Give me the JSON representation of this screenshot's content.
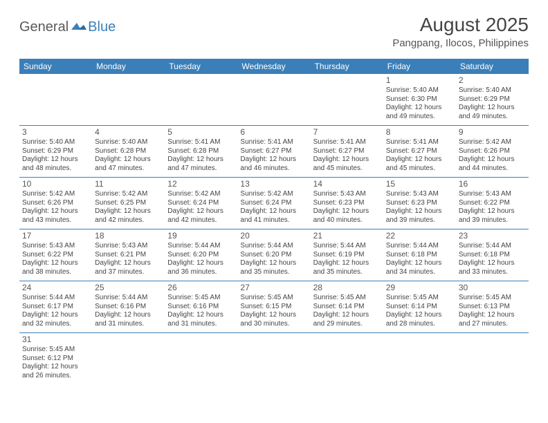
{
  "logo": {
    "part1": "General",
    "part2": "Blue"
  },
  "title": "August 2025",
  "location": "Pangpang, Ilocos, Philippines",
  "colors": {
    "header_bg": "#3b7fb8",
    "header_text": "#ffffff",
    "border": "#3b7fb8",
    "text": "#444444",
    "logo_gray": "#5a5a5a",
    "logo_blue": "#3b7fb8"
  },
  "weekdays": [
    "Sunday",
    "Monday",
    "Tuesday",
    "Wednesday",
    "Thursday",
    "Friday",
    "Saturday"
  ],
  "weeks": [
    [
      null,
      null,
      null,
      null,
      null,
      {
        "n": "1",
        "sr": "Sunrise: 5:40 AM",
        "ss": "Sunset: 6:30 PM",
        "d1": "Daylight: 12 hours",
        "d2": "and 49 minutes."
      },
      {
        "n": "2",
        "sr": "Sunrise: 5:40 AM",
        "ss": "Sunset: 6:29 PM",
        "d1": "Daylight: 12 hours",
        "d2": "and 49 minutes."
      }
    ],
    [
      {
        "n": "3",
        "sr": "Sunrise: 5:40 AM",
        "ss": "Sunset: 6:29 PM",
        "d1": "Daylight: 12 hours",
        "d2": "and 48 minutes."
      },
      {
        "n": "4",
        "sr": "Sunrise: 5:40 AM",
        "ss": "Sunset: 6:28 PM",
        "d1": "Daylight: 12 hours",
        "d2": "and 47 minutes."
      },
      {
        "n": "5",
        "sr": "Sunrise: 5:41 AM",
        "ss": "Sunset: 6:28 PM",
        "d1": "Daylight: 12 hours",
        "d2": "and 47 minutes."
      },
      {
        "n": "6",
        "sr": "Sunrise: 5:41 AM",
        "ss": "Sunset: 6:27 PM",
        "d1": "Daylight: 12 hours",
        "d2": "and 46 minutes."
      },
      {
        "n": "7",
        "sr": "Sunrise: 5:41 AM",
        "ss": "Sunset: 6:27 PM",
        "d1": "Daylight: 12 hours",
        "d2": "and 45 minutes."
      },
      {
        "n": "8",
        "sr": "Sunrise: 5:41 AM",
        "ss": "Sunset: 6:27 PM",
        "d1": "Daylight: 12 hours",
        "d2": "and 45 minutes."
      },
      {
        "n": "9",
        "sr": "Sunrise: 5:42 AM",
        "ss": "Sunset: 6:26 PM",
        "d1": "Daylight: 12 hours",
        "d2": "and 44 minutes."
      }
    ],
    [
      {
        "n": "10",
        "sr": "Sunrise: 5:42 AM",
        "ss": "Sunset: 6:26 PM",
        "d1": "Daylight: 12 hours",
        "d2": "and 43 minutes."
      },
      {
        "n": "11",
        "sr": "Sunrise: 5:42 AM",
        "ss": "Sunset: 6:25 PM",
        "d1": "Daylight: 12 hours",
        "d2": "and 42 minutes."
      },
      {
        "n": "12",
        "sr": "Sunrise: 5:42 AM",
        "ss": "Sunset: 6:24 PM",
        "d1": "Daylight: 12 hours",
        "d2": "and 42 minutes."
      },
      {
        "n": "13",
        "sr": "Sunrise: 5:42 AM",
        "ss": "Sunset: 6:24 PM",
        "d1": "Daylight: 12 hours",
        "d2": "and 41 minutes."
      },
      {
        "n": "14",
        "sr": "Sunrise: 5:43 AM",
        "ss": "Sunset: 6:23 PM",
        "d1": "Daylight: 12 hours",
        "d2": "and 40 minutes."
      },
      {
        "n": "15",
        "sr": "Sunrise: 5:43 AM",
        "ss": "Sunset: 6:23 PM",
        "d1": "Daylight: 12 hours",
        "d2": "and 39 minutes."
      },
      {
        "n": "16",
        "sr": "Sunrise: 5:43 AM",
        "ss": "Sunset: 6:22 PM",
        "d1": "Daylight: 12 hours",
        "d2": "and 39 minutes."
      }
    ],
    [
      {
        "n": "17",
        "sr": "Sunrise: 5:43 AM",
        "ss": "Sunset: 6:22 PM",
        "d1": "Daylight: 12 hours",
        "d2": "and 38 minutes."
      },
      {
        "n": "18",
        "sr": "Sunrise: 5:43 AM",
        "ss": "Sunset: 6:21 PM",
        "d1": "Daylight: 12 hours",
        "d2": "and 37 minutes."
      },
      {
        "n": "19",
        "sr": "Sunrise: 5:44 AM",
        "ss": "Sunset: 6:20 PM",
        "d1": "Daylight: 12 hours",
        "d2": "and 36 minutes."
      },
      {
        "n": "20",
        "sr": "Sunrise: 5:44 AM",
        "ss": "Sunset: 6:20 PM",
        "d1": "Daylight: 12 hours",
        "d2": "and 35 minutes."
      },
      {
        "n": "21",
        "sr": "Sunrise: 5:44 AM",
        "ss": "Sunset: 6:19 PM",
        "d1": "Daylight: 12 hours",
        "d2": "and 35 minutes."
      },
      {
        "n": "22",
        "sr": "Sunrise: 5:44 AM",
        "ss": "Sunset: 6:18 PM",
        "d1": "Daylight: 12 hours",
        "d2": "and 34 minutes."
      },
      {
        "n": "23",
        "sr": "Sunrise: 5:44 AM",
        "ss": "Sunset: 6:18 PM",
        "d1": "Daylight: 12 hours",
        "d2": "and 33 minutes."
      }
    ],
    [
      {
        "n": "24",
        "sr": "Sunrise: 5:44 AM",
        "ss": "Sunset: 6:17 PM",
        "d1": "Daylight: 12 hours",
        "d2": "and 32 minutes."
      },
      {
        "n": "25",
        "sr": "Sunrise: 5:44 AM",
        "ss": "Sunset: 6:16 PM",
        "d1": "Daylight: 12 hours",
        "d2": "and 31 minutes."
      },
      {
        "n": "26",
        "sr": "Sunrise: 5:45 AM",
        "ss": "Sunset: 6:16 PM",
        "d1": "Daylight: 12 hours",
        "d2": "and 31 minutes."
      },
      {
        "n": "27",
        "sr": "Sunrise: 5:45 AM",
        "ss": "Sunset: 6:15 PM",
        "d1": "Daylight: 12 hours",
        "d2": "and 30 minutes."
      },
      {
        "n": "28",
        "sr": "Sunrise: 5:45 AM",
        "ss": "Sunset: 6:14 PM",
        "d1": "Daylight: 12 hours",
        "d2": "and 29 minutes."
      },
      {
        "n": "29",
        "sr": "Sunrise: 5:45 AM",
        "ss": "Sunset: 6:14 PM",
        "d1": "Daylight: 12 hours",
        "d2": "and 28 minutes."
      },
      {
        "n": "30",
        "sr": "Sunrise: 5:45 AM",
        "ss": "Sunset: 6:13 PM",
        "d1": "Daylight: 12 hours",
        "d2": "and 27 minutes."
      }
    ],
    [
      {
        "n": "31",
        "sr": "Sunrise: 5:45 AM",
        "ss": "Sunset: 6:12 PM",
        "d1": "Daylight: 12 hours",
        "d2": "and 26 minutes."
      },
      null,
      null,
      null,
      null,
      null,
      null
    ]
  ]
}
